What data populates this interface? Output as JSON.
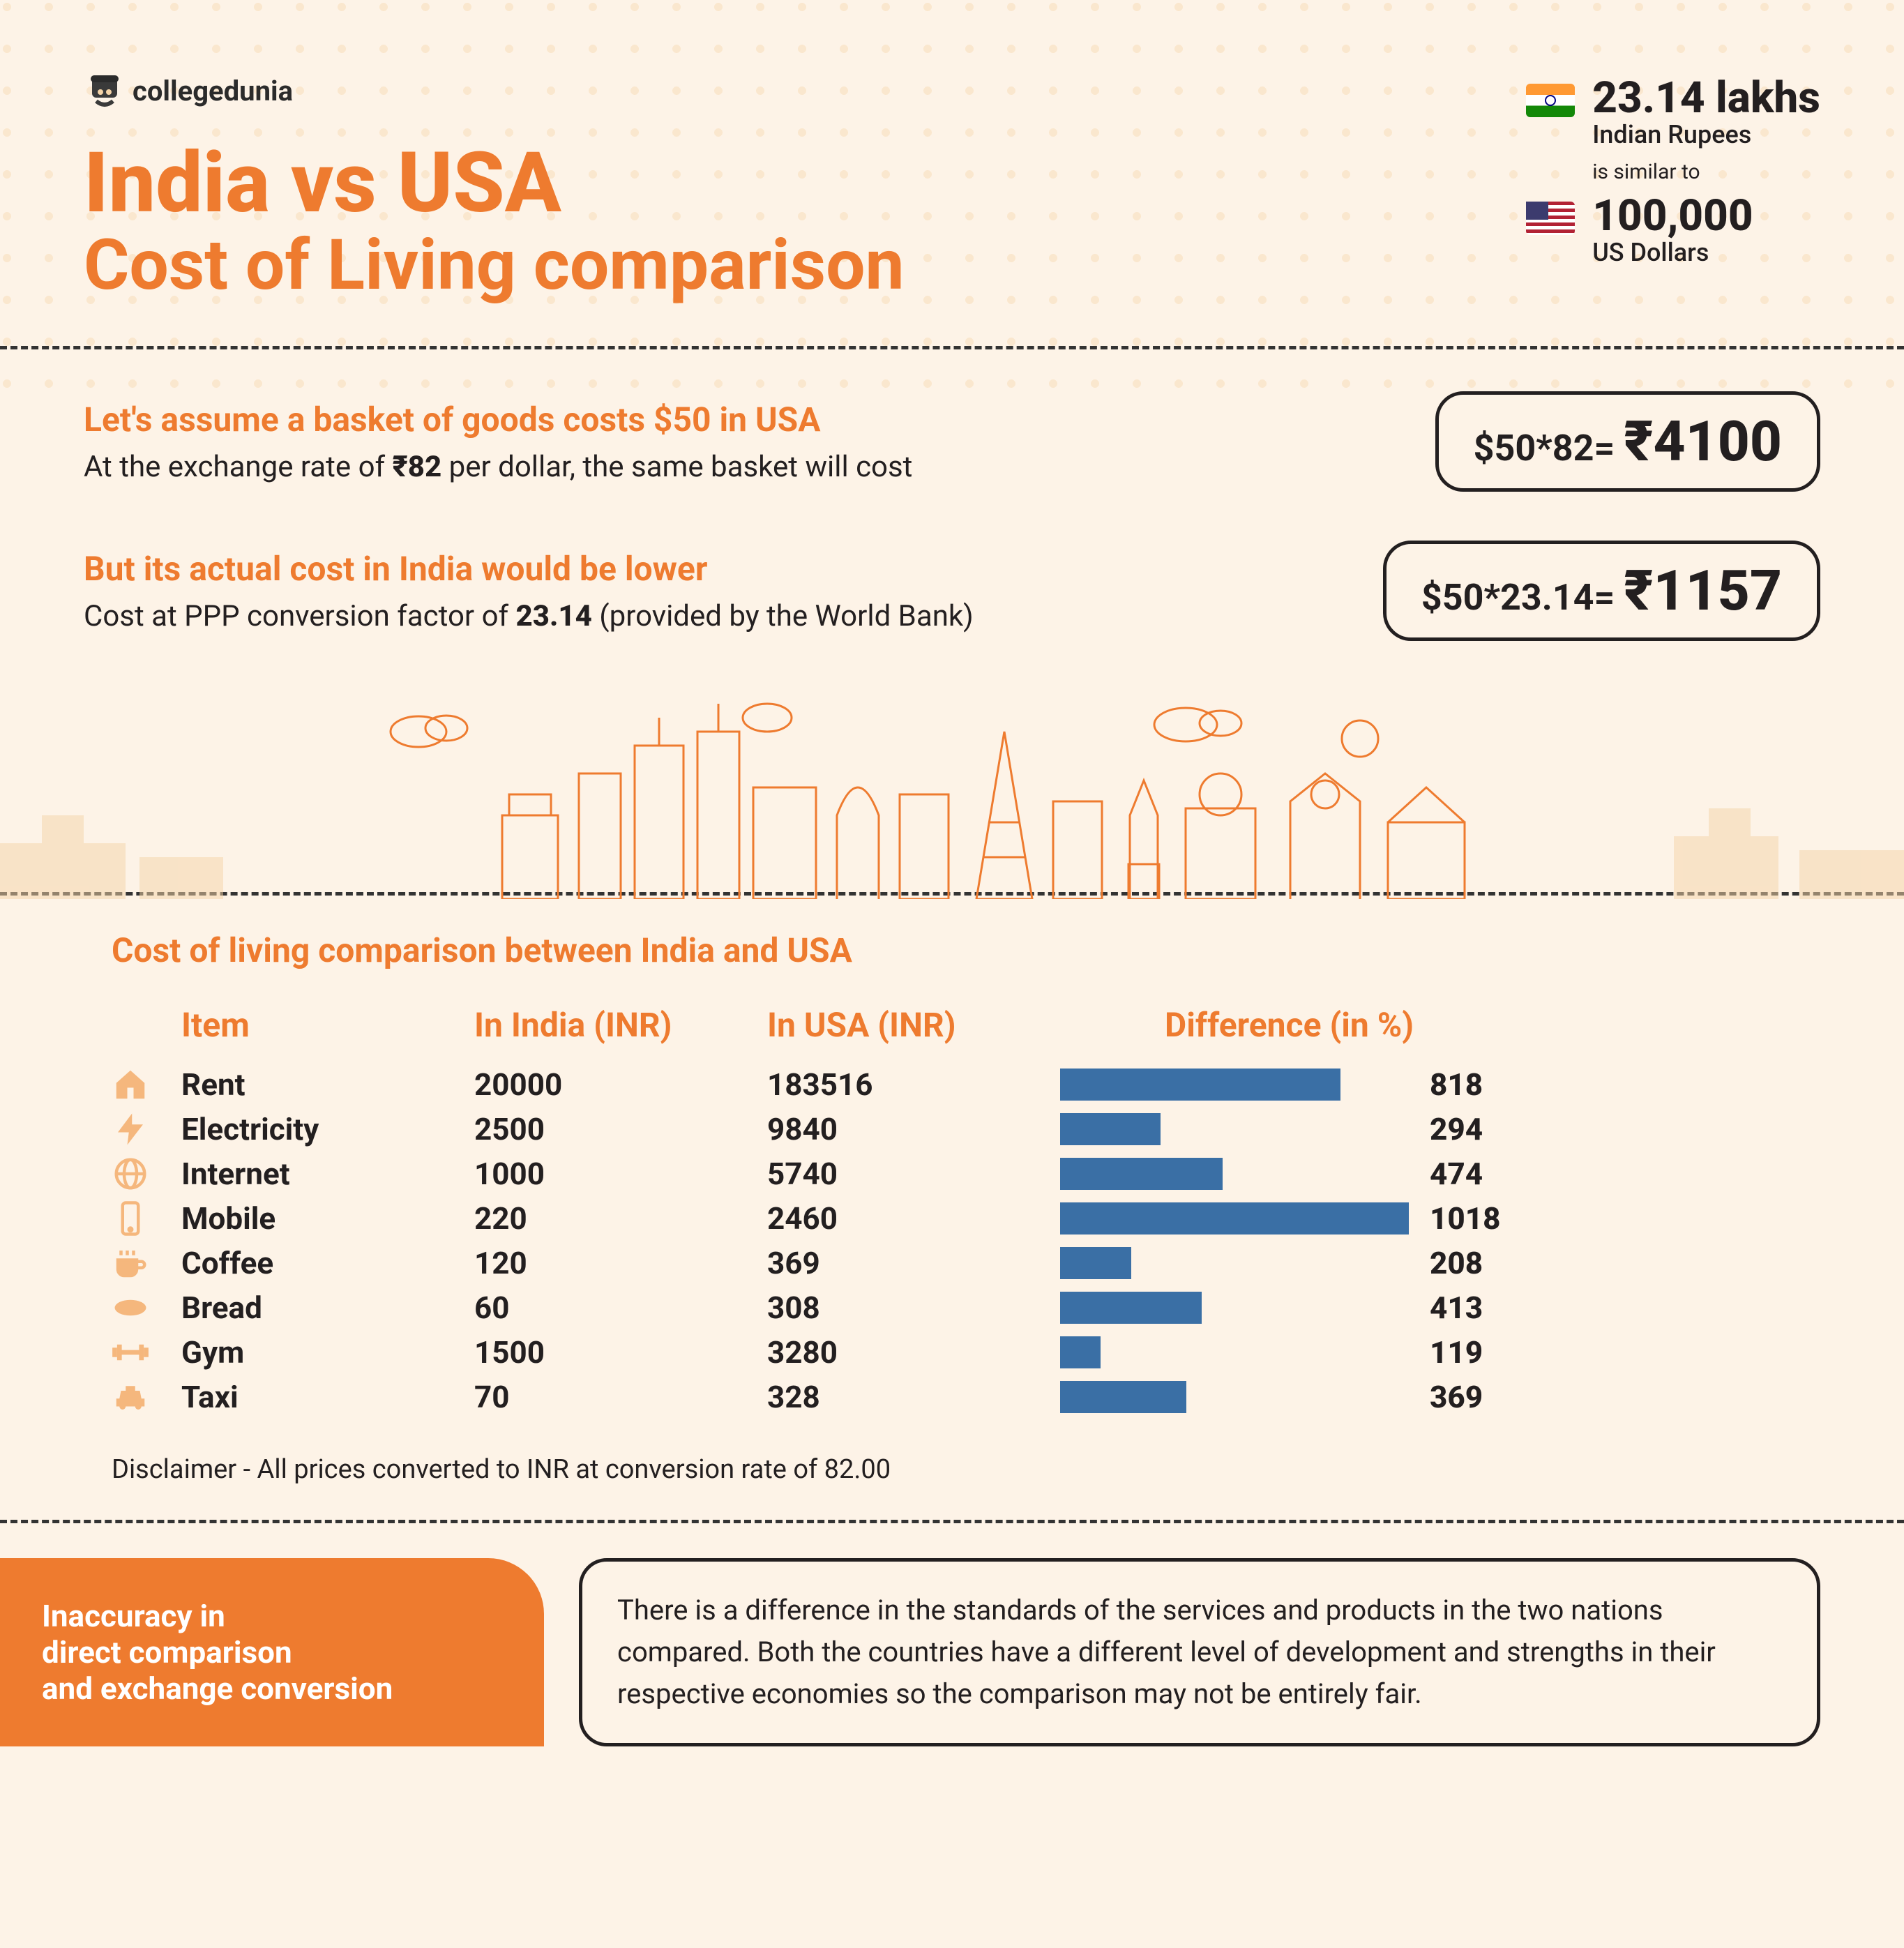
{
  "logo": {
    "text": "collegedunia"
  },
  "title": {
    "line1": "India vs USA",
    "line2": "Cost of Living comparison"
  },
  "currency": {
    "india_amount": "23.14 lakhs",
    "india_unit": "Indian Rupees",
    "similar": "is similar to",
    "usa_amount": "100,000",
    "usa_unit": "US Dollars"
  },
  "calc1": {
    "heading": "Let's assume a basket of goods costs $50 in USA",
    "text_prefix": "At the exchange rate of ",
    "text_bold": "₹82",
    "text_suffix": " per dollar, the same basket will cost",
    "formula": "$50*82= ",
    "result": "₹4100"
  },
  "calc2": {
    "heading": "But its actual cost in India would be lower",
    "text_prefix": "Cost at PPP conversion factor of ",
    "text_bold": "23.14",
    "text_suffix": " (provided by the World Bank)",
    "formula": "$50*23.14= ",
    "result": "₹1157"
  },
  "table": {
    "title": "Cost of living comparison between India and USA",
    "headers": {
      "item": "Item",
      "india": "In India (INR)",
      "usa": "In USA (INR)",
      "diff": "Difference (in %)"
    },
    "bar_max": 1018,
    "bar_color": "#3a6fa5",
    "rows": [
      {
        "icon": "home",
        "item": "Rent",
        "india": "20000",
        "usa": "183516",
        "diff": 818
      },
      {
        "icon": "bolt",
        "item": "Electricity",
        "india": "2500",
        "usa": "9840",
        "diff": 294
      },
      {
        "icon": "globe",
        "item": "Internet",
        "india": "1000",
        "usa": "5740",
        "diff": 474
      },
      {
        "icon": "mobile",
        "item": "Mobile",
        "india": "220",
        "usa": "2460",
        "diff": 1018
      },
      {
        "icon": "coffee",
        "item": "Coffee",
        "india": "120",
        "usa": "369",
        "diff": 208
      },
      {
        "icon": "bread",
        "item": "Bread",
        "india": "60",
        "usa": "308",
        "diff": 413
      },
      {
        "icon": "dumbbell",
        "item": "Gym",
        "india": "1500",
        "usa": "3280",
        "diff": 119
      },
      {
        "icon": "taxi",
        "item": "Taxi",
        "india": "70",
        "usa": "328",
        "diff": 369
      }
    ],
    "disclaimer": "Disclaimer - All prices converted to INR at conversion rate of 82.00"
  },
  "footer": {
    "label": "Inaccuracy in\ndirect comparison\nand exchange conversion",
    "text": "There is a difference in the standards of the services and products in the two nations compared. Both the countries have a different level of development and strengths in their respective economies so the comparison may not be entirely fair."
  },
  "colors": {
    "accent": "#ee7b2f",
    "text": "#231f20",
    "bg": "#fdf3e7",
    "icon": "#f5b77d"
  }
}
